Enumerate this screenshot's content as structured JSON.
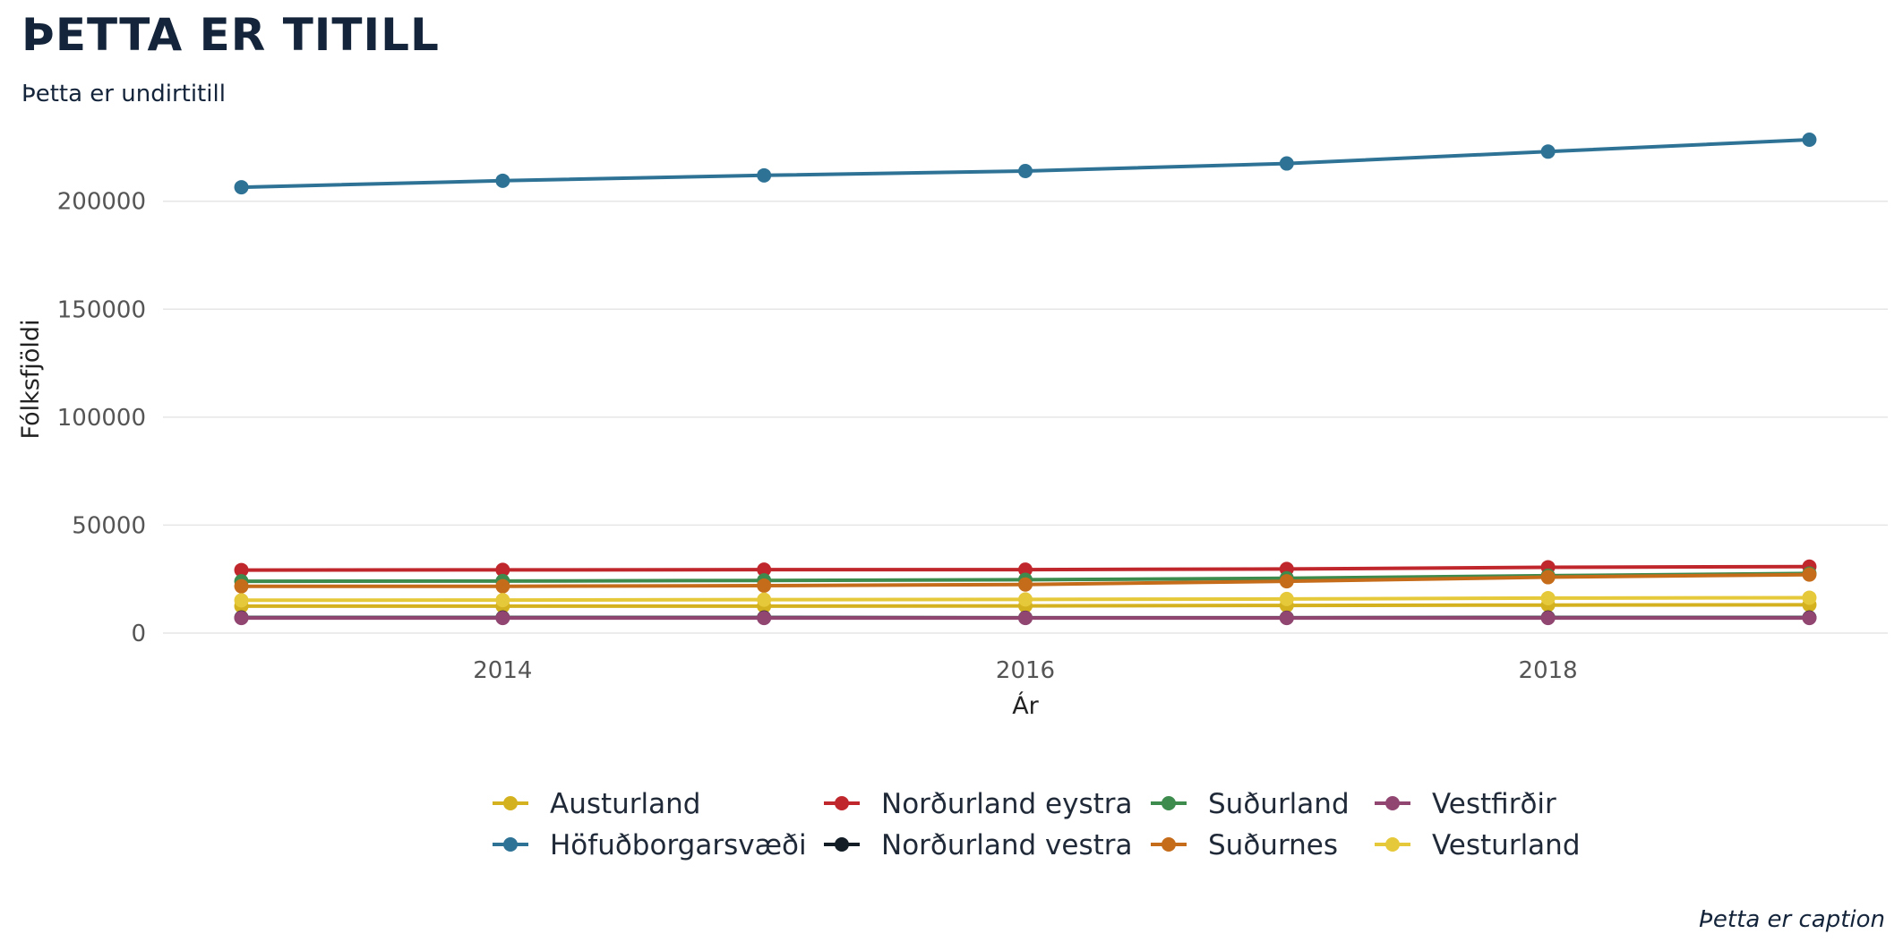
{
  "title": "ÞETTA ER TITILL",
  "subtitle": "Þetta er undirtitill",
  "caption": "Þetta er caption",
  "chart_data": {
    "type": "line",
    "xlabel": "Ár",
    "ylabel": "Fólksfjöldi",
    "x": [
      2013,
      2014,
      2015,
      2016,
      2017,
      2018,
      2019
    ],
    "xticks": [
      2014,
      2016,
      2018
    ],
    "yticks": [
      0,
      50000,
      100000,
      150000,
      200000
    ],
    "xlim": [
      2012.7,
      2019.3
    ],
    "ylim": [
      0,
      231000
    ],
    "grid": "horizontal",
    "legend_position": "bottom",
    "series": [
      {
        "name": "Austurland",
        "color": "#d4b21f",
        "values": [
          12500,
          12500,
          12500,
          12600,
          12800,
          13000,
          13100
        ]
      },
      {
        "name": "Höfuðborgarsvæði",
        "color": "#2e7396",
        "values": [
          206500,
          209500,
          212000,
          214000,
          217500,
          223000,
          228500
        ]
      },
      {
        "name": "Norðurland eystra",
        "color": "#c0272d",
        "values": [
          29200,
          29300,
          29400,
          29400,
          29700,
          30500,
          30800
        ]
      },
      {
        "name": "Norðurland vestra",
        "color": "#121d26",
        "values": [
          7200,
          7200,
          7200,
          7100,
          7100,
          7200,
          7200
        ]
      },
      {
        "name": "Suðurland",
        "color": "#3d8b4d",
        "values": [
          24000,
          24100,
          24400,
          24700,
          25400,
          26600,
          27600
        ]
      },
      {
        "name": "Suðurnes",
        "color": "#c56c1a",
        "values": [
          21700,
          21700,
          22000,
          22500,
          24000,
          25900,
          27100
        ]
      },
      {
        "name": "Vestfirðir",
        "color": "#914672",
        "values": [
          7000,
          7000,
          7000,
          7000,
          7000,
          7000,
          7000
        ]
      },
      {
        "name": "Vesturland",
        "color": "#e6c93a",
        "values": [
          15200,
          15300,
          15500,
          15600,
          15800,
          16200,
          16400
        ]
      }
    ]
  }
}
